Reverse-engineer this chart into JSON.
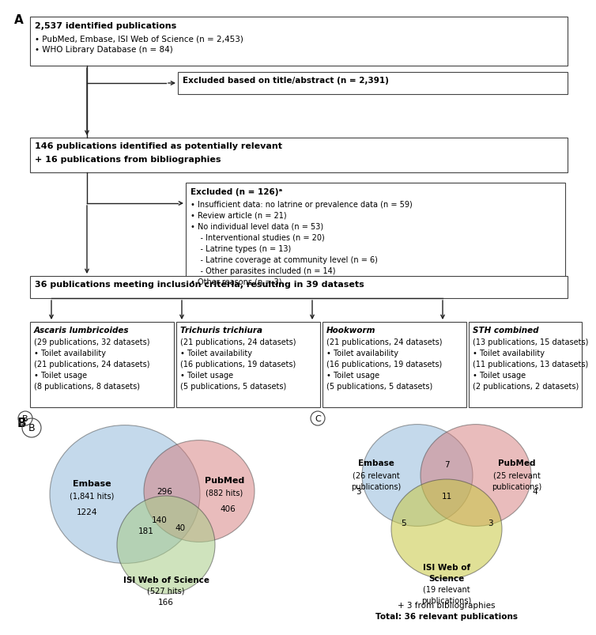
{
  "panel_A": {
    "box1_lines": [
      "2,537 identified publications",
      "• PubMed, Embase, ISI Web of Science (n = 2,453)",
      "• WHO Library Database (n = 84)"
    ],
    "box2_text": "Excluded based on title/abstract (n = 2,391)",
    "box3_lines": [
      "146 publications identified as potentially relevant",
      "+ 16 publications from bibliographies"
    ],
    "box4_title": "Excluded (n = 126)ᵃ",
    "box4_lines": [
      "• Insufficient data: no latrine or prevalence data (n = 59)",
      "• Review article (n = 21)",
      "• No individual level data (n = 53)",
      "    - Interventional studies (n = 20)",
      "    - Latrine types (n = 13)",
      "    - Latrine coverage at community level (n = 6)",
      "    - Other parasites included (n = 14)",
      "• Other reasons (n = 3)"
    ],
    "box5_text": "36 publications meeting inclusion criteria, resulting in 39 datasets",
    "box_ascaris_title": "Ascaris lumbricoides",
    "box_ascaris_lines": [
      "(29 publications, 32 datasets)",
      "• Toilet availability",
      "(21 publications, 24 datasets)",
      "• Toilet usage",
      "(8 publications, 8 datasets)"
    ],
    "box_trichuris_title": "Trichuris trichiura",
    "box_trichuris_lines": [
      "(21 publications, 24 datasets)",
      "• Toilet availability",
      "(16 publications, 19 datasets)",
      "• Toilet usage",
      "(5 publications, 5 datasets)"
    ],
    "box_hookworm_title": "Hookworm",
    "box_hookworm_lines": [
      "(21 publications, 24 datasets)",
      "• Toilet availability",
      "(16 publications, 19 datasets)",
      "• Toilet usage",
      "(5 publications, 5 datasets)"
    ],
    "box_sth_title": "STH combined",
    "box_sth_lines": [
      "(13 publications, 15 datasets)",
      "• Toilet availability",
      "(11 publications, 13 datasets)",
      "• Toilet usage",
      "(2 publications, 2 datasets)"
    ]
  },
  "panel_B": {
    "embase_label": "Embase",
    "embase_sub": "(1,841 hits)",
    "pubmed_label": "PubMed",
    "pubmed_sub": "(882 hits)",
    "isi_label": "ISI Web of Science",
    "isi_sub": "(527 hits)",
    "n_1224": "1224",
    "n_296": "296",
    "n_406": "406",
    "n_140": "140",
    "n_181": "181",
    "n_40": "40",
    "n_166": "166"
  },
  "panel_C": {
    "embase_label": "Embase",
    "embase_sub": "(26 relevant\npublications)",
    "pubmed_label": "PubMed",
    "pubmed_sub": "(25 relevant\npublications)",
    "isi_label": "ISI Web of\nScience",
    "isi_sub": "(19 relevant\npublications)",
    "n_3left": "3",
    "n_7": "7",
    "n_4": "4",
    "n_11": "11",
    "n_5": "5",
    "n_3right": "3",
    "footer1": "+ 3 from bibliographies",
    "footer2": "Total: 36 relevant publications"
  },
  "colors": {
    "blue": "#8ab4d8",
    "red": "#d47b7b",
    "green": "#a8cc88",
    "yellow": "#c8c840",
    "edge": "#444444",
    "box_edge": "#555555",
    "text": "#1a1a1a",
    "arrow": "#222222"
  }
}
